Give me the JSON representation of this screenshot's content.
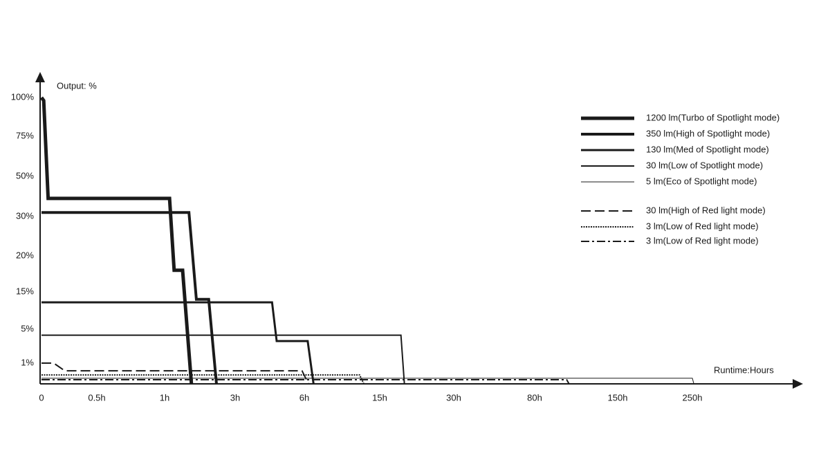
{
  "chart_data": {
    "type": "line",
    "y_label": "Output: %",
    "x_label": "Runtime:Hours",
    "xlim": [
      0,
      400
    ],
    "ylim": [
      0,
      100
    ],
    "xticks": [
      0,
      {
        "value": 0.5,
        "label": "0.5h"
      },
      {
        "value": 1,
        "label": "1h"
      },
      {
        "value": 3,
        "label": "3h"
      },
      {
        "value": 6,
        "label": "6h"
      },
      {
        "value": 15,
        "label": "15h"
      },
      {
        "value": 30,
        "label": "30h"
      },
      {
        "value": 80,
        "label": "80h"
      },
      {
        "value": 150,
        "label": "150h"
      },
      {
        "value": 250,
        "label": "250h"
      }
    ],
    "yticks": [
      {
        "value": 1,
        "label": "1%"
      },
      {
        "value": 5,
        "label": "5%"
      },
      {
        "value": 15,
        "label": "15%"
      },
      {
        "value": 20,
        "label": "20%"
      },
      {
        "value": 30,
        "label": "30%"
      },
      {
        "value": 50,
        "label": "50%"
      },
      {
        "value": 75,
        "label": "75%"
      },
      {
        "value": 100,
        "label": "100%"
      }
    ],
    "series": [
      {
        "name": "1200 lm(Turbo of Spotlight mode)",
        "color": "#1a1a1a",
        "linewidth": 5,
        "style": "solid",
        "x": [
          0,
          0.02,
          0.06,
          1.14,
          1.27,
          1.51,
          1.76
        ],
        "values": [
          100,
          98,
          39,
          39,
          18,
          18,
          0
        ]
      },
      {
        "name": "350 lm(High of Spotlight mode)",
        "color": "#1a1a1a",
        "linewidth": 4,
        "style": "solid",
        "x": [
          0,
          1.69,
          1.9,
          2.25,
          2.47
        ],
        "values": [
          32,
          32,
          13,
          13,
          0
        ]
      },
      {
        "name": "130 lm(Med of Spotlight mode)",
        "color": "#1a1a1a",
        "linewidth": 3,
        "style": "solid",
        "x": [
          0,
          4.6,
          4.8,
          6.4,
          7.1
        ],
        "values": [
          12.2,
          12.2,
          3.6,
          3.6,
          0
        ]
      },
      {
        "name": "30 lm(Low of Spotlight mode)",
        "color": "#1a1a1a",
        "linewidth": 2,
        "style": "solid",
        "x": [
          0,
          19.3,
          20
        ],
        "values": [
          4.3,
          4.3,
          0
        ]
      },
      {
        "name": "5 lm(Eco of Spotlight mode)",
        "color": "#1a1a1a",
        "linewidth": 1,
        "style": "solid",
        "x": [
          0,
          250,
          252
        ],
        "values": [
          0.27,
          0.27,
          0
        ]
      },
      {
        "name": "30 lm(High of Red light mode)",
        "color": "#1a1a1a",
        "linewidth": 2,
        "style": "dashed",
        "x": [
          0,
          0.11,
          0.21,
          5.9,
          6.5
        ],
        "values": [
          1,
          1,
          0.63,
          0.63,
          0
        ]
      },
      {
        "name": "3 lm(Low of Red light mode)",
        "color": "#1a1a1a",
        "linewidth": 2,
        "style": "dotted",
        "x": [
          0,
          12.6,
          13.1
        ],
        "values": [
          0.43,
          0.43,
          0
        ]
      },
      {
        "name": "3 lm(Low of Red light mode)",
        "color": "#1a1a1a",
        "linewidth": 2,
        "style": "dashdot",
        "x": [
          0,
          107,
          109
        ],
        "values": [
          0.2,
          0.2,
          0
        ]
      }
    ]
  }
}
